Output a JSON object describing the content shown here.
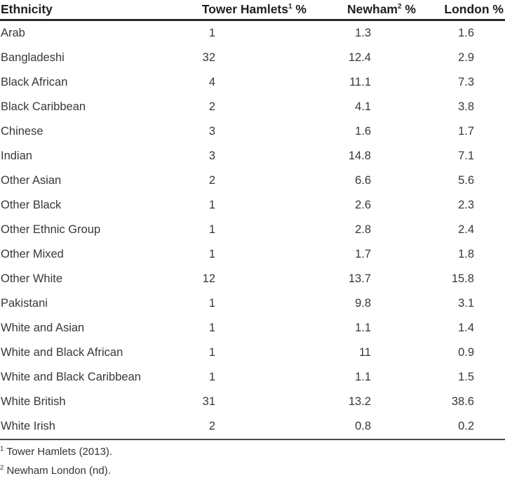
{
  "chart_data": {
    "type": "table",
    "title": "",
    "columns": [
      {
        "label": "Ethnicity",
        "sup": "",
        "suffix": ""
      },
      {
        "label": "Tower Hamlets",
        "sup": "1",
        "suffix": " %"
      },
      {
        "label": "Newham",
        "sup": "2",
        "suffix": " %"
      },
      {
        "label": "London",
        "sup": "",
        "suffix": " %"
      }
    ],
    "rows": [
      [
        "Arab",
        "1",
        "1.3",
        "1.6"
      ],
      [
        "Bangladeshi",
        "32",
        "12.4",
        "2.9"
      ],
      [
        "Black African",
        "4",
        "11.1",
        "7.3"
      ],
      [
        "Black Caribbean",
        "2",
        "4.1",
        "3.8"
      ],
      [
        "Chinese",
        "3",
        "1.6",
        "1.7"
      ],
      [
        "Indian",
        "3",
        "14.8",
        "7.1"
      ],
      [
        "Other Asian",
        "2",
        "6.6",
        "5.6"
      ],
      [
        "Other Black",
        "1",
        "2.6",
        "2.3"
      ],
      [
        "Other Ethnic Group",
        "1",
        "2.8",
        "2.4"
      ],
      [
        "Other Mixed",
        "1",
        "1.7",
        "1.8"
      ],
      [
        "Other White",
        "12",
        "13.7",
        "15.8"
      ],
      [
        "Pakistani",
        "1",
        "9.8",
        "3.1"
      ],
      [
        "White and Asian",
        "1",
        "1.1",
        "1.4"
      ],
      [
        "White and Black African",
        "1",
        "11",
        "0.9"
      ],
      [
        "White and Black Caribbean",
        "1",
        "1.1",
        "1.5"
      ],
      [
        "White British",
        "31",
        "13.2",
        "38.6"
      ],
      [
        "White Irish",
        "2",
        "0.8",
        "0.2"
      ]
    ]
  },
  "footnotes": [
    {
      "marker": "1",
      "text": "Tower Hamlets (2013)."
    },
    {
      "marker": "2",
      "text": "Newham London (nd)."
    }
  ],
  "colors": {
    "background": "#ffffff",
    "header_text": "#1f1f1f",
    "body_text": "#383838",
    "header_rule": "#2b2b2b",
    "bottom_rule": "#4a4a4a"
  }
}
